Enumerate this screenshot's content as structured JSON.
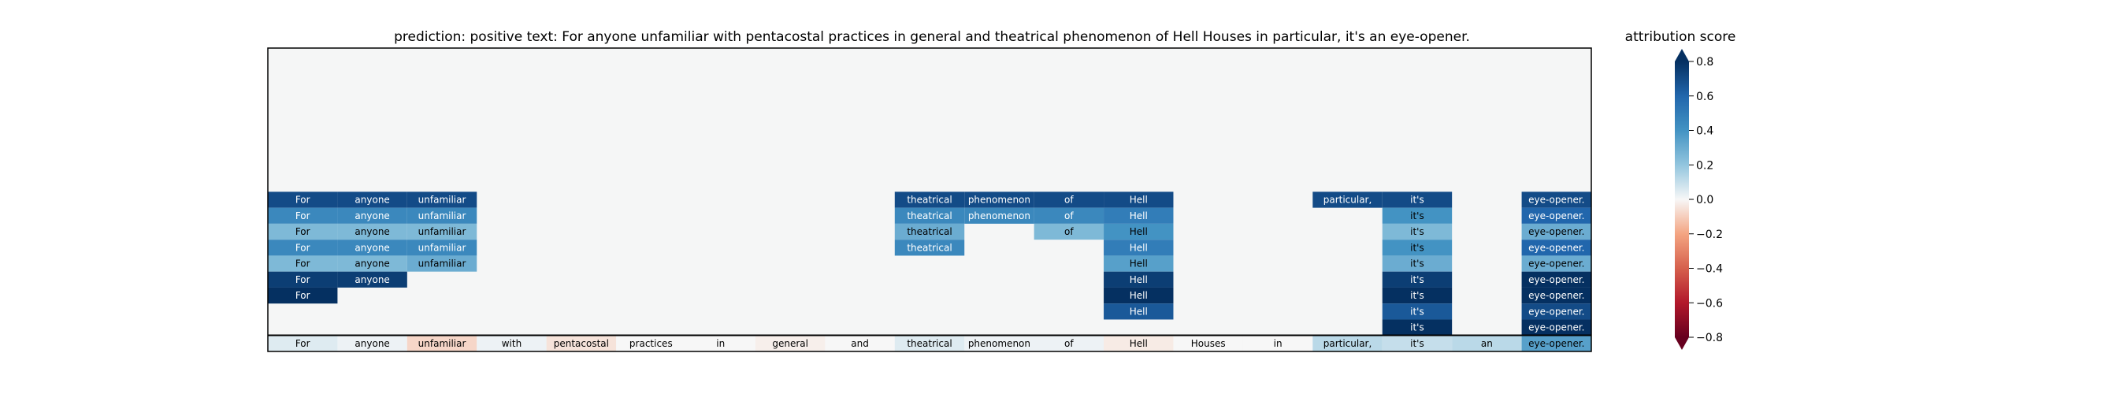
{
  "header": {
    "title": "prediction:  positive     text:  For anyone unfamiliar with pentacostal practices in general and theatrical phenomenon of Hell Houses in particular, it's an eye-opener."
  },
  "colorbar": {
    "title": "attribution score",
    "ticks": [
      "0.8",
      "0.6",
      "0.4",
      "0.2",
      "0.0",
      "−0.2",
      "−0.4",
      "−0.6",
      "−0.8"
    ]
  },
  "chart_data": {
    "type": "heatmap",
    "title": "prediction:  positive     text:  For anyone unfamiliar with pentacostal practices in general and theatrical phenomenon of Hell Houses in particular, it's an eye-opener.",
    "colorbar_label": "attribution score",
    "value_range": [
      -0.8,
      0.8
    ],
    "tokens": [
      "For",
      "anyone",
      "unfamiliar",
      "with",
      "pentacostal",
      "practices",
      "in",
      "general",
      "and",
      "theatrical",
      "phenomenon",
      "of",
      "Hell",
      "Houses",
      "in",
      "particular,",
      "it's",
      "an",
      "eye-opener."
    ],
    "empty_top_rows": 9,
    "rows": [
      [
        0.7,
        0.7,
        0.7,
        null,
        null,
        null,
        null,
        null,
        null,
        0.7,
        0.7,
        0.7,
        0.7,
        null,
        null,
        0.7,
        0.7,
        null,
        0.7
      ],
      [
        0.45,
        0.45,
        0.45,
        null,
        null,
        null,
        null,
        null,
        null,
        0.45,
        0.45,
        0.45,
        0.5,
        null,
        null,
        null,
        0.4,
        null,
        0.6
      ],
      [
        0.25,
        0.25,
        0.25,
        null,
        null,
        null,
        null,
        null,
        null,
        0.3,
        null,
        0.25,
        0.4,
        null,
        null,
        null,
        0.25,
        null,
        0.3
      ],
      [
        0.45,
        0.45,
        0.45,
        null,
        null,
        null,
        null,
        null,
        null,
        0.45,
        null,
        null,
        0.5,
        null,
        null,
        null,
        0.4,
        null,
        0.6
      ],
      [
        0.25,
        0.25,
        0.3,
        null,
        null,
        null,
        null,
        null,
        null,
        null,
        null,
        null,
        0.35,
        null,
        null,
        null,
        0.3,
        null,
        0.3
      ],
      [
        0.75,
        0.75,
        null,
        null,
        null,
        null,
        null,
        null,
        null,
        null,
        null,
        null,
        0.75,
        null,
        null,
        null,
        0.75,
        null,
        0.8
      ],
      [
        0.95,
        null,
        null,
        null,
        null,
        null,
        null,
        null,
        null,
        null,
        null,
        null,
        0.95,
        null,
        null,
        null,
        0.95,
        null,
        0.95
      ],
      [
        null,
        null,
        null,
        null,
        null,
        null,
        null,
        null,
        null,
        null,
        null,
        null,
        0.65,
        null,
        null,
        null,
        0.65,
        null,
        0.7
      ],
      [
        null,
        null,
        null,
        null,
        null,
        null,
        null,
        null,
        null,
        null,
        null,
        null,
        null,
        null,
        null,
        null,
        0.95,
        null,
        0.95
      ],
      [
        0.05,
        0.02,
        -0.08,
        0.02,
        -0.05,
        0.0,
        0.0,
        -0.02,
        0.0,
        0.05,
        0.02,
        0.02,
        -0.03,
        0.0,
        0.0,
        0.12,
        0.1,
        0.12,
        0.35
      ]
    ]
  }
}
